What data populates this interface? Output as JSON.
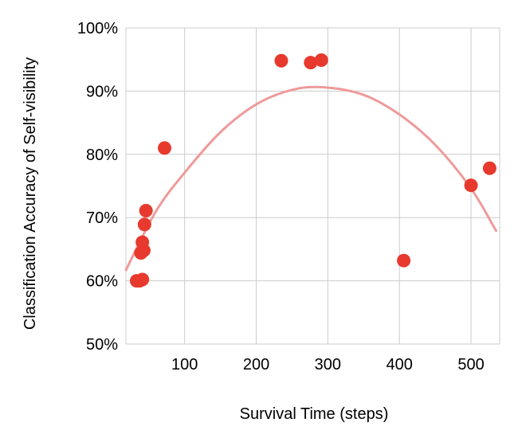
{
  "chart_data": {
    "type": "scatter",
    "xlabel": "Survival Time (steps)",
    "ylabel": "Classification Accuracy of Self-visibility",
    "xlim": [
      18,
      540
    ],
    "ylim": [
      50,
      100
    ],
    "x_ticks": [
      100,
      200,
      300,
      400,
      500
    ],
    "y_ticks": [
      50,
      60,
      70,
      80,
      90,
      100
    ],
    "x_tick_labels": [
      "100",
      "200",
      "300",
      "400",
      "500"
    ],
    "y_tick_labels": [
      "50%",
      "60%",
      "70%",
      "80%",
      "90%",
      "100%"
    ],
    "grid": true,
    "legend": "none",
    "point_color": "#e8392e",
    "trendline_color": "#ef9a9a",
    "points": [
      {
        "x": 33,
        "y": 60.0
      },
      {
        "x": 37,
        "y": 60.0
      },
      {
        "x": 41,
        "y": 60.2
      },
      {
        "x": 39,
        "y": 64.4
      },
      {
        "x": 43,
        "y": 64.8
      },
      {
        "x": 41,
        "y": 66.1
      },
      {
        "x": 44,
        "y": 68.9
      },
      {
        "x": 46,
        "y": 71.1
      },
      {
        "x": 72,
        "y": 81.0
      },
      {
        "x": 235,
        "y": 94.8
      },
      {
        "x": 276,
        "y": 94.5
      },
      {
        "x": 291,
        "y": 94.9
      },
      {
        "x": 406,
        "y": 63.2
      },
      {
        "x": 500,
        "y": 75.1
      },
      {
        "x": 526,
        "y": 77.8
      }
    ],
    "trendline": {
      "type": "polynomial",
      "degree": 2,
      "x": [
        18,
        60,
        100,
        150,
        200,
        250,
        295,
        350,
        400,
        450,
        500,
        535
      ],
      "y": [
        61.7,
        71.0,
        77.1,
        83.5,
        87.9,
        90.2,
        90.6,
        89.4,
        86.3,
        81.5,
        74.6,
        67.9
      ]
    }
  }
}
